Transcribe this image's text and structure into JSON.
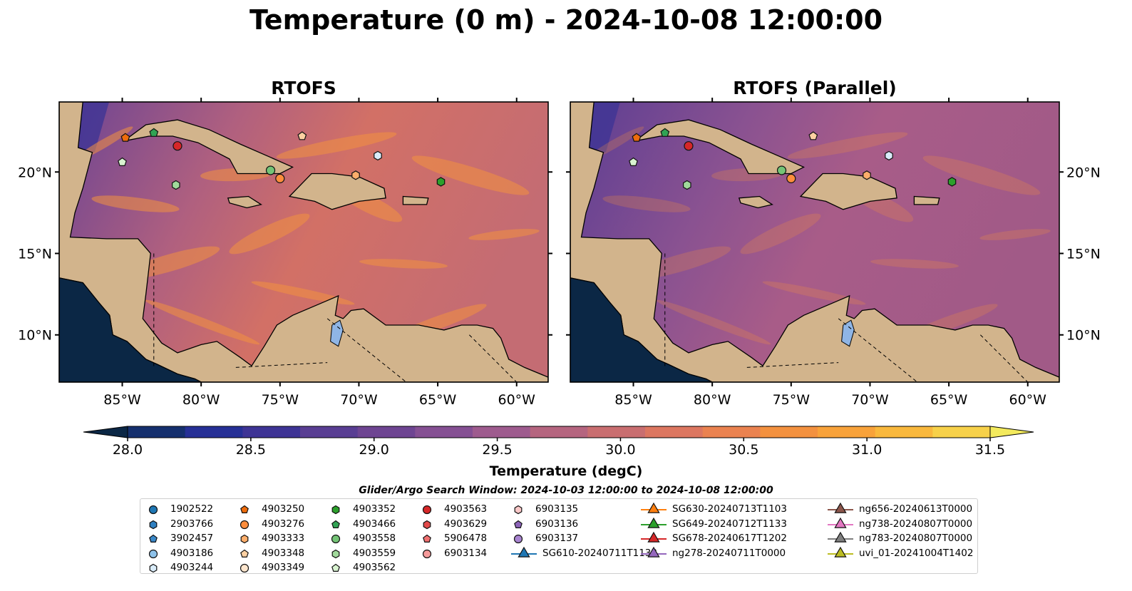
{
  "title": "Temperature (0 m) - 2024-10-08 12:00:00",
  "panels": [
    {
      "title": "RTOFS"
    },
    {
      "title": "RTOFS (Parallel)"
    }
  ],
  "x_ticks": [
    "85°W",
    "80°W",
    "75°W",
    "70°W",
    "65°W",
    "60°W"
  ],
  "y_ticks": [
    "20°N",
    "15°N",
    "10°N"
  ],
  "colorbar": {
    "label": "Temperature (degC)",
    "ticks": [
      "28.0",
      "28.5",
      "29.0",
      "29.5",
      "30.0",
      "30.5",
      "31.0",
      "31.5"
    ],
    "colors": [
      "#0b2745",
      "#15306e",
      "#263096",
      "#3e3495",
      "#593e93",
      "#6e4592",
      "#855093",
      "#9e5b8e",
      "#b5657f",
      "#c96e70",
      "#dc7660",
      "#ea8250",
      "#f3913f",
      "#f8a23a",
      "#f9b83d",
      "#f7d14a",
      "#f3ea5d"
    ]
  },
  "search_window": "Glider/Argo Search Window: 2024-10-03 12:00:00 to 2024-10-08 12:00:00",
  "legend": [
    {
      "label": "1902522",
      "shape": "circle",
      "color": "#1f77b4"
    },
    {
      "label": "2903766",
      "shape": "hexagon",
      "color": "#2f7fc0"
    },
    {
      "label": "3902457",
      "shape": "pentagon",
      "color": "#3a88c8"
    },
    {
      "label": "4903186",
      "shape": "circle",
      "color": "#8ec2ea"
    },
    {
      "label": "4903244",
      "shape": "hexagon",
      "color": "#d9ecfa"
    },
    {
      "label": "4903250",
      "shape": "pentagon",
      "color": "#ee6c0c"
    },
    {
      "label": "4903276",
      "shape": "circle",
      "color": "#fd8d3c"
    },
    {
      "label": "4903333",
      "shape": "hexagon",
      "color": "#fdae6b"
    },
    {
      "label": "4903348",
      "shape": "pentagon",
      "color": "#fdd0a2"
    },
    {
      "label": "4903349",
      "shape": "circle",
      "color": "#fee6ce"
    },
    {
      "label": "4903352",
      "shape": "hexagon",
      "color": "#2ca02c"
    },
    {
      "label": "4903466",
      "shape": "pentagon",
      "color": "#31a354"
    },
    {
      "label": "4903558",
      "shape": "circle",
      "color": "#74c476"
    },
    {
      "label": "4903559",
      "shape": "hexagon",
      "color": "#a1d99b"
    },
    {
      "label": "4903562",
      "shape": "pentagon",
      "color": "#d8f3d0"
    },
    {
      "label": "4903563",
      "shape": "circle",
      "color": "#d62728"
    },
    {
      "label": "4903629",
      "shape": "hexagon",
      "color": "#e34a4a"
    },
    {
      "label": "5906478",
      "shape": "pentagon",
      "color": "#f07070"
    },
    {
      "label": "6903134",
      "shape": "circle",
      "color": "#f59a9a"
    },
    {
      "label": "6903135",
      "shape": "hexagon",
      "color": "#fbc8c8"
    },
    {
      "label": "6903136",
      "shape": "pentagon",
      "color": "#8c63b8"
    },
    {
      "label": "6903137",
      "shape": "circle",
      "color": "#a884d0"
    },
    {
      "label": "SG610-20240711T1133",
      "shape": "triangle",
      "color": "#1f77b4"
    },
    {
      "label": "SG630-20240713T1103",
      "shape": "triangle",
      "color": "#ff7f0e"
    },
    {
      "label": "SG649-20240712T1133",
      "shape": "triangle",
      "color": "#2ca02c"
    },
    {
      "label": "SG678-20240617T1202",
      "shape": "triangle",
      "color": "#d62728"
    },
    {
      "label": "ng278-20240711T0000",
      "shape": "triangle",
      "color": "#9467bd"
    },
    {
      "label": "ng656-20240613T0000",
      "shape": "triangle",
      "color": "#8c564b"
    },
    {
      "label": "ng738-20240807T0000",
      "shape": "triangle",
      "color": "#e377c2"
    },
    {
      "label": "ng783-20240807T0000",
      "shape": "triangle",
      "color": "#7f7f7f"
    },
    {
      "label": "uvi_01-20241004T1402",
      "shape": "triangle",
      "color": "#bcbd22"
    }
  ],
  "markers": [
    {
      "lon": -81.5,
      "lat": 21.6,
      "shape": "circle",
      "color": "#d62728"
    },
    {
      "lon": -75.6,
      "lat": 20.1,
      "shape": "circle",
      "color": "#74c476"
    },
    {
      "lon": -75.0,
      "lat": 19.6,
      "shape": "circle",
      "color": "#fd8d3c"
    },
    {
      "lon": -84.8,
      "lat": 22.1,
      "shape": "pentagon",
      "color": "#ee6c0c"
    },
    {
      "lon": -83.0,
      "lat": 22.4,
      "shape": "pentagon",
      "color": "#31a354"
    },
    {
      "lon": -85.0,
      "lat": 20.6,
      "shape": "pentagon",
      "color": "#d8f3d0"
    },
    {
      "lon": -81.6,
      "lat": 19.2,
      "shape": "hexagon",
      "color": "#a1d99b"
    },
    {
      "lon": -73.6,
      "lat": 22.2,
      "shape": "pentagon",
      "color": "#fdd0a2"
    },
    {
      "lon": -68.8,
      "lat": 21.0,
      "shape": "hexagon",
      "color": "#d9ecfa"
    },
    {
      "lon": -70.2,
      "lat": 19.8,
      "shape": "hexagon",
      "color": "#fdae6b"
    },
    {
      "lon": -64.8,
      "lat": 19.4,
      "shape": "hexagon",
      "color": "#2ca02c"
    }
  ]
}
